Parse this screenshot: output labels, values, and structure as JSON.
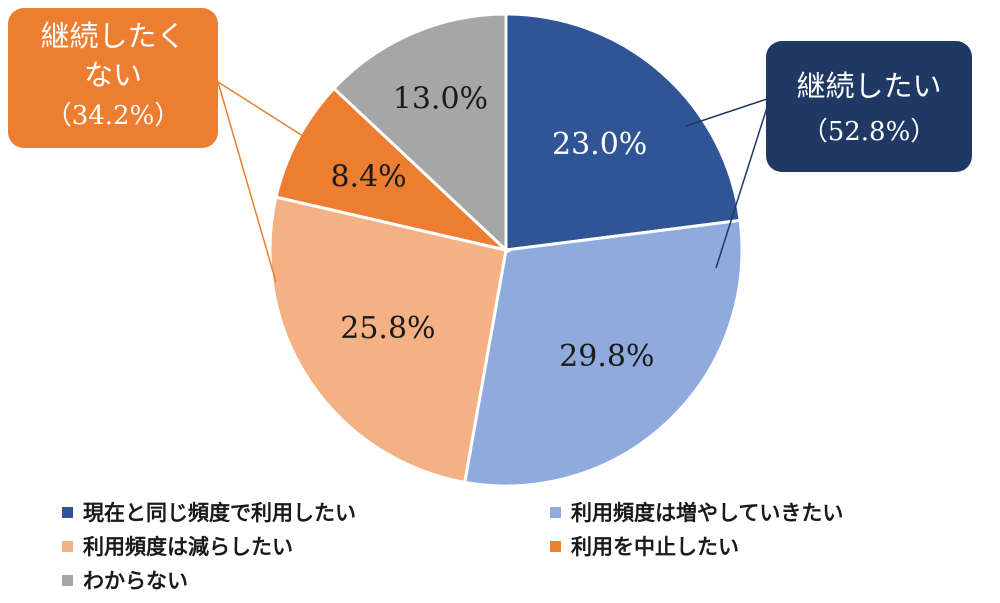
{
  "chart_data": {
    "type": "pie",
    "categories": [
      "現在と同じ頻度で利用したい",
      "利用頻度は増やしていきたい",
      "利用頻度は減らしたい",
      "利用を中止したい",
      "わからない"
    ],
    "values": [
      23.0,
      29.8,
      25.8,
      8.4,
      13.0
    ],
    "data_labels": [
      "23.0%",
      "29.8%",
      "25.8%",
      "8.4%",
      "13.0%"
    ],
    "colors": [
      "#2f5597",
      "#8faadc",
      "#f4b183",
      "#ed7d31",
      "#a6a6a6"
    ],
    "label_colors": [
      "#ffffff",
      "#1a1a1a",
      "#1a1a1a",
      "#1a1a1a",
      "#1a1a1a"
    ],
    "start_angle_deg": 0,
    "direction": "clockwise",
    "legend_position": "bottom",
    "callouts": [
      {
        "line1": "継続したい",
        "line2": "",
        "pct": "（52.8%）",
        "color": "#1f3864"
      },
      {
        "line1": "継続したく",
        "line2": "ない",
        "pct": "（34.2%）",
        "color": "#ed7d31"
      }
    ]
  }
}
